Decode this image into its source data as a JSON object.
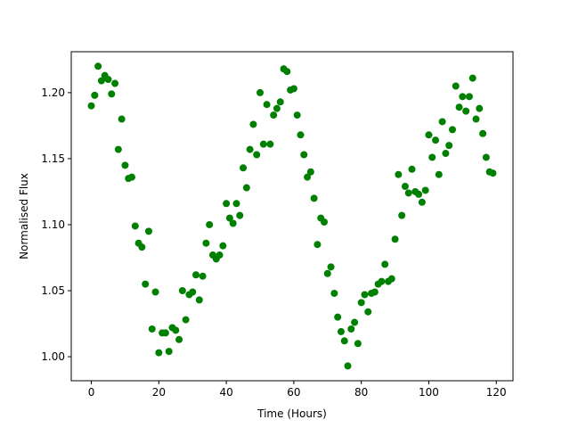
{
  "chart_data": {
    "type": "scatter",
    "xlabel": "Time (Hours)",
    "ylabel": "Normalised Flux",
    "color": "#008000",
    "x": [
      0,
      1,
      2,
      3,
      4,
      5,
      6,
      7,
      8,
      9,
      10,
      11,
      12,
      13,
      14,
      15,
      16,
      17,
      18,
      19,
      20,
      21,
      22,
      23,
      24,
      25,
      26,
      27,
      28,
      29,
      30,
      31,
      32,
      33,
      34,
      35,
      36,
      37,
      38,
      39,
      40,
      41,
      42,
      43,
      44,
      45,
      46,
      47,
      48,
      49,
      50,
      51,
      52,
      53,
      54,
      55,
      56,
      57,
      58,
      59,
      60,
      61,
      62,
      63,
      64,
      65,
      66,
      67,
      68,
      69,
      70,
      71,
      72,
      73,
      74,
      75,
      76,
      77,
      78,
      79,
      80,
      81,
      82,
      83,
      84,
      85,
      86,
      87,
      88,
      89,
      90,
      91,
      92,
      93,
      94,
      95,
      96,
      97,
      98,
      99,
      100,
      101,
      102,
      103,
      104,
      105,
      106,
      107,
      108,
      109,
      110,
      111,
      112,
      113,
      114,
      115,
      116,
      117,
      118,
      119
    ],
    "values": [
      1.19,
      1.198,
      1.22,
      1.209,
      1.213,
      1.21,
      1.199,
      1.207,
      1.157,
      1.18,
      1.145,
      1.135,
      1.136,
      1.099,
      1.086,
      1.083,
      1.055,
      1.095,
      1.021,
      1.049,
      1.003,
      1.018,
      1.018,
      1.004,
      1.022,
      1.02,
      1.013,
      1.05,
      1.028,
      1.047,
      1.049,
      1.062,
      1.043,
      1.061,
      1.086,
      1.1,
      1.077,
      1.074,
      1.077,
      1.084,
      1.116,
      1.105,
      1.101,
      1.116,
      1.107,
      1.143,
      1.128,
      1.157,
      1.176,
      1.153,
      1.2,
      1.161,
      1.191,
      1.161,
      1.183,
      1.188,
      1.193,
      1.218,
      1.216,
      1.202,
      1.203,
      1.183,
      1.168,
      1.153,
      1.136,
      1.14,
      1.12,
      1.085,
      1.105,
      1.102,
      1.063,
      1.068,
      1.048,
      1.03,
      1.019,
      1.012,
      0.993,
      1.021,
      1.026,
      1.01,
      1.041,
      1.047,
      1.034,
      1.048,
      1.049,
      1.055,
      1.057,
      1.07,
      1.057,
      1.059,
      1.089,
      1.138,
      1.107,
      1.129,
      1.124,
      1.142,
      1.125,
      1.123,
      1.117,
      1.126,
      1.168,
      1.151,
      1.164,
      1.138,
      1.178,
      1.154,
      1.16,
      1.172,
      1.205,
      1.189,
      1.197,
      1.186,
      1.197,
      1.211,
      1.18,
      1.188,
      1.169,
      1.151,
      1.14,
      1.139
    ],
    "xlim": [
      -5.95,
      124.95
    ],
    "ylim": [
      0.9818,
      1.231
    ],
    "xticks": [
      0,
      20,
      40,
      60,
      80,
      100,
      120
    ],
    "yticks": [
      {
        "value": 1.0,
        "label": "1.00"
      },
      {
        "value": 1.05,
        "label": "1.05"
      },
      {
        "value": 1.1,
        "label": "1.10"
      },
      {
        "value": 1.15,
        "label": "1.15"
      },
      {
        "value": 1.2,
        "label": "1.20"
      }
    ]
  }
}
